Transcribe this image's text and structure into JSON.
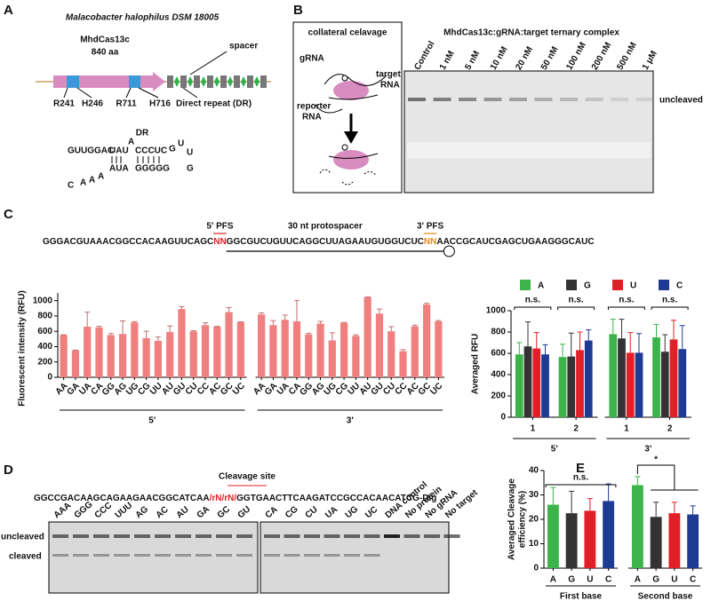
{
  "panel_a": {
    "letter": "A",
    "organism": "Malacobacter halophilus DSM 18005",
    "protein": "MhdCas13c",
    "length": "840 aa",
    "spacer": "spacer",
    "residues": [
      "R241",
      "H246",
      "R711",
      "H716"
    ],
    "direct_repeat": "Direct repeat (DR)",
    "dr_title": "DR",
    "dr_structure": [
      "GUUGGAC",
      "UAU",
      "A",
      "CCCUC",
      "G",
      "U",
      "U",
      "G",
      "AUA",
      "GGGGG",
      "C",
      "A",
      "A",
      "A"
    ]
  },
  "panel_b": {
    "letter": "B",
    "schematic_title": "collateral celavage",
    "grna": "gRNA",
    "target_rna": [
      "target",
      "RNA"
    ],
    "reporter_rna": [
      "reporter",
      "RNA"
    ],
    "gel_title": "MhdCas13c:gRNA:target ternary complex",
    "lanes": [
      "Control",
      "1 nM",
      "5 nM",
      "10 nM",
      "20 nM",
      "50 nM",
      "100 nM",
      "200 nM",
      "500 nM",
      "1 μM"
    ],
    "band": "uncleaved"
  },
  "panel_c": {
    "letter": "C",
    "sequence": [
      "GGGACGUAAACGGCCACAAGUUCAGC",
      "NN",
      "GGCGUCUGUUCAGGCUUAGAAUGUGGUCUC",
      "NN",
      "AACCGCAUCGAGCUGAAGGGCAUC"
    ],
    "pfs5": "5' PFS",
    "protospacer": "30 nt protospacer",
    "pfs3": "3' PFS"
  },
  "panel_d": {
    "letter": "D",
    "cleavage_site": "Cleavage site",
    "sequence": [
      "GGCCGACAAGCAGAAGAACGGCATCAA",
      "/rN/rN/",
      "GGTGAACTTCAAGATCCGCCACAACATCG-Dig"
    ],
    "lanes": [
      "AAA",
      "GGG",
      "CCC",
      "UUU",
      "AG",
      "AC",
      "AU",
      "GA",
      "GC",
      "GU",
      "CA",
      "CG",
      "CU",
      "UA",
      "UG",
      "UC",
      "DNA control",
      "No protein",
      "No gRNA",
      "No target"
    ],
    "bands": [
      "uncleaved",
      "cleaved"
    ]
  },
  "panel_e": {
    "letter": "E"
  },
  "chart_data": [
    {
      "type": "bar",
      "ylabel": "Fluorescent intensity (RFU)",
      "categories": [
        "AA",
        "GA",
        "UA",
        "CA",
        "GG",
        "AG",
        "UG",
        "CG",
        "UU",
        "AU",
        "GU",
        "CU",
        "CC",
        "AC",
        "GC",
        "UC",
        "AA",
        "GA",
        "UA",
        "CA",
        "GG",
        "AG",
        "UG",
        "CG",
        "UU",
        "AU",
        "GU",
        "CU",
        "CC",
        "AC",
        "GC",
        "UC"
      ],
      "group_labels": [
        "5'",
        "3'"
      ],
      "values": [
        550,
        350,
        660,
        650,
        550,
        565,
        715,
        510,
        475,
        590,
        890,
        600,
        680,
        660,
        850,
        720,
        820,
        680,
        750,
        730,
        560,
        700,
        480,
        710,
        540,
        1045,
        830,
        600,
        340,
        665,
        950,
        730
      ],
      "errors": [
        5,
        5,
        190,
        15,
        20,
        170,
        10,
        90,
        50,
        80,
        30,
        10,
        30,
        5,
        60,
        5,
        20,
        60,
        60,
        270,
        15,
        30,
        100,
        5,
        15,
        5,
        60,
        60,
        20,
        15,
        15,
        10
      ],
      "color": "#f08080",
      "ylim": [
        0,
        1100
      ],
      "yticks": [
        0,
        200,
        400,
        600,
        800,
        1000
      ]
    },
    {
      "type": "bar",
      "ylabel": "Averaged RFU",
      "categories": [
        "1",
        "2",
        "1",
        "2"
      ],
      "group_labels": [
        "5'",
        "3'"
      ],
      "series": [
        {
          "name": "A",
          "color": "#3cb44b",
          "values": [
            590,
            565,
            780,
            750
          ],
          "errors": [
            110,
            120,
            140,
            120
          ]
        },
        {
          "name": "G",
          "color": "#333333",
          "values": [
            665,
            570,
            740,
            615
          ],
          "errors": [
            230,
            220,
            180,
            160
          ]
        },
        {
          "name": "U",
          "color": "#e21f26",
          "values": [
            645,
            630,
            605,
            730
          ],
          "errors": [
            150,
            170,
            190,
            180
          ]
        },
        {
          "name": "C",
          "color": "#1f3a93",
          "values": [
            590,
            720,
            605,
            640
          ],
          "errors": [
            90,
            100,
            180,
            220
          ]
        }
      ],
      "annotations": [
        "n.s.",
        "n.s.",
        "n.s.",
        "n.s."
      ],
      "ylim": [
        0,
        1000
      ],
      "yticks": [
        0,
        200,
        400,
        600,
        800,
        1000
      ]
    },
    {
      "type": "bar",
      "ylabel": [
        "Averaged Cleavage",
        "efficiency (%)"
      ],
      "categories": [
        "A",
        "G",
        "U",
        "C",
        "A",
        "G",
        "U",
        "C"
      ],
      "group_labels": [
        "First base",
        "Second base"
      ],
      "values": [
        26,
        22.5,
        23.5,
        27.5,
        34,
        21,
        22.5,
        22
      ],
      "errors": [
        7,
        9,
        5,
        7,
        3.5,
        6,
        4.5,
        3.5
      ],
      "colors": [
        "#3cb44b",
        "#333333",
        "#e21f26",
        "#1f3a93",
        "#3cb44b",
        "#333333",
        "#e21f26",
        "#1f3a93"
      ],
      "annotations": [
        "n.s.",
        "*"
      ],
      "ylim": [
        0,
        40
      ],
      "yticks": [
        0,
        10,
        20,
        30,
        40
      ]
    }
  ]
}
